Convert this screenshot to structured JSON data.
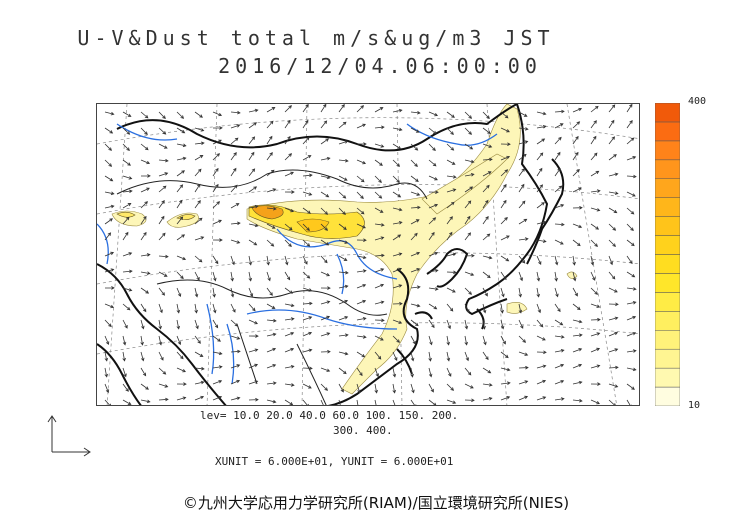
{
  "title_line1": "U-V&Dust total m/s&ug/m3 JST",
  "title_line2": "2016/12/04.06:00:00",
  "colorbar": {
    "max_label": "400",
    "min_label": "10",
    "colors": [
      "#fffde0",
      "#fff9b0",
      "#fff592",
      "#fff27a",
      "#ffef5f",
      "#ffec45",
      "#ffe62a",
      "#ffdd20",
      "#ffd21c",
      "#ffc41a",
      "#ffb61a",
      "#ffa61c",
      "#ff951c",
      "#ff831a",
      "#fb6c12",
      "#f15a0a"
    ]
  },
  "levels_line1": "lev= 10.0 20.0 40.0 60.0 100. 150. 200.",
  "levels_line2": "300. 400.",
  "units_text": "XUNIT = 6.000E+01, YUNIT = 6.000E+01",
  "copyright": "©九州大学応用力学研究所(RIAM)/国立環境研究所(NIES)",
  "colors": {
    "land_outline": "#111",
    "rivers": "#2a6fe0",
    "dust_low": "#fdf6b8",
    "dust_high": "#f5a21a",
    "arrows": "#333"
  }
}
